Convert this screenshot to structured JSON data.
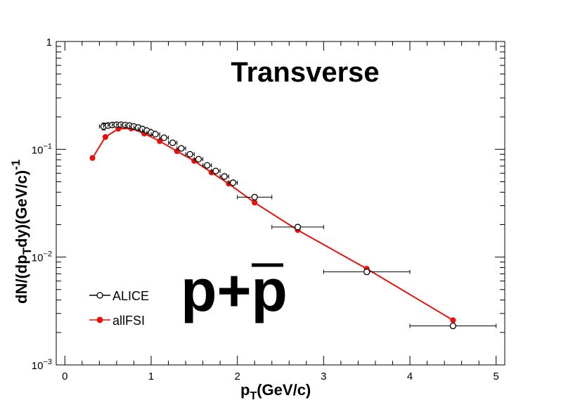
{
  "chart_data": {
    "type": "scatter",
    "title": "Transverse",
    "annotation": "p+p",
    "xlabel": {
      "main": "p",
      "sub": "T",
      "tail": "(GeV/c)"
    },
    "ylabel": {
      "p1": "dN/(dp",
      "sub": "T",
      "p2": "dy)(GeV/c)",
      "sup": "-1"
    },
    "xlim": [
      -0.1,
      5.1
    ],
    "ylim": [
      0.001,
      1
    ],
    "yscale": "log",
    "x_ticks": [
      0,
      1,
      2,
      3,
      4,
      5
    ],
    "x_tick_labels": [
      "0",
      "1",
      "2",
      "3",
      "4",
      "5"
    ],
    "y_ticks": [
      {
        "value": 0.001,
        "base": "10",
        "exp": "−3"
      },
      {
        "value": 0.01,
        "base": "10",
        "exp": "−2"
      },
      {
        "value": 0.1,
        "base": "10",
        "exp": "−1"
      },
      {
        "value": 1,
        "base": "1",
        "exp": ""
      }
    ],
    "legend_position": "bottom-left",
    "series": [
      {
        "name": "ALICE",
        "style": "open-circle-errorbars",
        "color": "#000000",
        "points": [
          {
            "x": 0.45,
            "y": 0.163,
            "xerr": 0.05,
            "yerr": 0.012
          },
          {
            "x": 0.5,
            "y": 0.166,
            "xerr": 0.05,
            "yerr": 0.008
          },
          {
            "x": 0.55,
            "y": 0.168,
            "xerr": 0.05,
            "yerr": 0.006
          },
          {
            "x": 0.6,
            "y": 0.169,
            "xerr": 0.05,
            "yerr": 0.005
          },
          {
            "x": 0.65,
            "y": 0.169,
            "xerr": 0.05,
            "yerr": 0.005
          },
          {
            "x": 0.7,
            "y": 0.168,
            "xerr": 0.05,
            "yerr": 0.005
          },
          {
            "x": 0.75,
            "y": 0.166,
            "xerr": 0.05,
            "yerr": 0.005
          },
          {
            "x": 0.8,
            "y": 0.163,
            "xerr": 0.05,
            "yerr": 0.005
          },
          {
            "x": 0.85,
            "y": 0.159,
            "xerr": 0.05,
            "yerr": 0.005
          },
          {
            "x": 0.9,
            "y": 0.154,
            "xerr": 0.05,
            "yerr": 0.005
          },
          {
            "x": 0.95,
            "y": 0.149,
            "xerr": 0.05,
            "yerr": 0.005
          },
          {
            "x": 1.0,
            "y": 0.143,
            "xerr": 0.05,
            "yerr": 0.005
          },
          {
            "x": 1.05,
            "y": 0.138,
            "xerr": 0.05,
            "yerr": 0.005
          },
          {
            "x": 1.15,
            "y": 0.128,
            "xerr": 0.05,
            "yerr": 0.005
          },
          {
            "x": 1.25,
            "y": 0.115,
            "xerr": 0.05,
            "yerr": 0.004
          },
          {
            "x": 1.35,
            "y": 0.102,
            "xerr": 0.05,
            "yerr": 0.004
          },
          {
            "x": 1.45,
            "y": 0.09,
            "xerr": 0.05,
            "yerr": 0.004
          },
          {
            "x": 1.55,
            "y": 0.081,
            "xerr": 0.05,
            "yerr": 0.003
          },
          {
            "x": 1.65,
            "y": 0.071,
            "xerr": 0.05,
            "yerr": 0.003
          },
          {
            "x": 1.75,
            "y": 0.063,
            "xerr": 0.05,
            "yerr": 0.003
          },
          {
            "x": 1.85,
            "y": 0.056,
            "xerr": 0.05,
            "yerr": 0.002
          },
          {
            "x": 1.95,
            "y": 0.049,
            "xerr": 0.05,
            "yerr": 0.002
          },
          {
            "x": 2.2,
            "y": 0.036,
            "xerr": 0.2,
            "yerr": 0.002
          },
          {
            "x": 2.7,
            "y": 0.019,
            "xerr": 0.3,
            "yerr": 0.001
          },
          {
            "x": 3.5,
            "y": 0.0073,
            "xerr": 0.5,
            "yerr": 0.0004
          },
          {
            "x": 4.5,
            "y": 0.0023,
            "xerr": 0.5,
            "yerr": 0.0001
          }
        ]
      },
      {
        "name": "allFSI",
        "style": "filled-circle-line",
        "color": "#e8120c",
        "points": [
          {
            "x": 0.32,
            "y": 0.083
          },
          {
            "x": 0.47,
            "y": 0.13
          },
          {
            "x": 0.62,
            "y": 0.155
          },
          {
            "x": 0.77,
            "y": 0.156
          },
          {
            "x": 0.92,
            "y": 0.14
          },
          {
            "x": 1.1,
            "y": 0.119
          },
          {
            "x": 1.3,
            "y": 0.096
          },
          {
            "x": 1.5,
            "y": 0.078
          },
          {
            "x": 1.7,
            "y": 0.061
          },
          {
            "x": 1.9,
            "y": 0.048
          },
          {
            "x": 2.2,
            "y": 0.032
          },
          {
            "x": 2.7,
            "y": 0.0178
          },
          {
            "x": 3.5,
            "y": 0.0078
          },
          {
            "x": 4.5,
            "y": 0.0026
          }
        ]
      }
    ]
  }
}
